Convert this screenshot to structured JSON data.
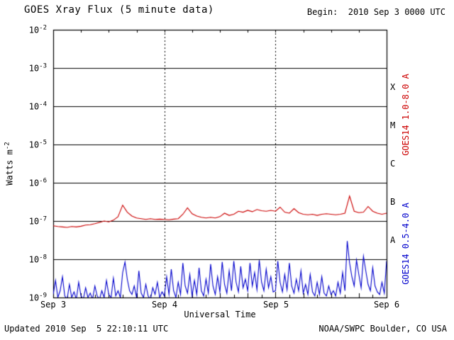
{
  "header": {
    "title": "GOES Xray Flux (5 minute data)",
    "begin": "Begin:  2010 Sep 3 0000 UTC"
  },
  "axes": {
    "ylabel": {
      "base": "Watts m",
      "exp": "-2"
    },
    "xlabel": "Universal Time",
    "y_ticks": [
      {
        "base": "10",
        "exp": "-2"
      },
      {
        "base": "10",
        "exp": "-3"
      },
      {
        "base": "10",
        "exp": "-4"
      },
      {
        "base": "10",
        "exp": "-5"
      },
      {
        "base": "10",
        "exp": "-6"
      },
      {
        "base": "10",
        "exp": "-7"
      },
      {
        "base": "10",
        "exp": "-8"
      },
      {
        "base": "10",
        "exp": "-9"
      }
    ],
    "x_ticks": [
      "Sep 3",
      "Sep 4",
      "Sep 5",
      "Sep 6"
    ],
    "flux_classes": [
      "X",
      "M",
      "C",
      "B",
      "A"
    ]
  },
  "legend": {
    "long_channel": "GOES14 1.0-8.0 A",
    "short_channel": "GOES14 0.5-4.0 A",
    "long_color": "#cc0000",
    "short_color": "#0000cc"
  },
  "footer": {
    "updated": "Updated 2010 Sep  5 22:10:11 UTC",
    "source": "NOAA/SWPC Boulder, CO USA"
  },
  "chart_data": {
    "type": "line",
    "title": "GOES Xray Flux (5 minute data)",
    "xlabel": "Universal Time",
    "ylabel": "Watts m^-2",
    "y_scale": "log",
    "ylim": [
      1e-09,
      0.01
    ],
    "x_start": "2010 Sep 3 0000 UTC",
    "x_end": "2010 Sep 6 0000 UTC",
    "x_span_hours": 72,
    "day_ticks": [
      "Sep 3",
      "Sep 4",
      "Sep 5",
      "Sep 6"
    ],
    "grid": {
      "horizontal_decades": true,
      "vertical_dotted_at_days": true
    },
    "flux_class_bands": {
      "A": [
        1e-08,
        1e-07
      ],
      "B": [
        1e-07,
        1e-06
      ],
      "C": [
        1e-06,
        1e-05
      ],
      "M": [
        1e-05,
        0.0001
      ],
      "X": [
        0.0001,
        0.001
      ]
    },
    "series": [
      {
        "name": "GOES14 1.0-8.0 A",
        "color": "#cc0000",
        "dt_hours": 1,
        "scale": 1e-07,
        "units": "W/m^2",
        "values": [
          0.75,
          0.72,
          0.7,
          0.68,
          0.72,
          0.7,
          0.73,
          0.78,
          0.8,
          0.85,
          0.92,
          1.0,
          0.95,
          1.05,
          1.3,
          2.6,
          1.7,
          1.35,
          1.2,
          1.15,
          1.1,
          1.15,
          1.1,
          1.12,
          1.1,
          1.08,
          1.12,
          1.15,
          1.5,
          2.2,
          1.55,
          1.35,
          1.25,
          1.2,
          1.25,
          1.2,
          1.3,
          1.6,
          1.4,
          1.5,
          1.8,
          1.7,
          1.9,
          1.75,
          2.0,
          1.85,
          1.8,
          1.9,
          1.8,
          2.3,
          1.7,
          1.6,
          2.1,
          1.65,
          1.5,
          1.45,
          1.5,
          1.4,
          1.5,
          1.55,
          1.5,
          1.45,
          1.5,
          1.6,
          4.5,
          1.8,
          1.65,
          1.7,
          2.4,
          1.8,
          1.6,
          1.5,
          1.6
        ]
      },
      {
        "name": "GOES14 0.5-4.0 A",
        "color": "#0000cc",
        "dt_hours": 0.5,
        "scale": 1e-09,
        "units": "W/m^2",
        "values": [
          1.2,
          2.8,
          1.0,
          1.5,
          3.5,
          1.1,
          0.9,
          2.2,
          1.0,
          1.4,
          0.9,
          2.5,
          1.1,
          0.9,
          1.8,
          1.0,
          1.3,
          0.9,
          2.0,
          1.1,
          0.9,
          1.5,
          1.0,
          2.8,
          1.2,
          1.0,
          3.2,
          1.1,
          1.5,
          1.0,
          4.5,
          8.5,
          3.0,
          1.5,
          1.2,
          2.0,
          1.0,
          5.0,
          1.3,
          1.0,
          2.2,
          1.1,
          0.9,
          1.8,
          1.2,
          2.5,
          1.0,
          1.4,
          1.1,
          3.5,
          1.2,
          5.5,
          1.5,
          1.0,
          2.5,
          1.2,
          8.0,
          2.0,
          1.3,
          4.0,
          1.1,
          2.8,
          1.2,
          6.0,
          1.5,
          1.1,
          3.0,
          1.3,
          7.5,
          2.0,
          1.2,
          3.5,
          1.4,
          8.5,
          2.2,
          1.3,
          5.0,
          1.5,
          9.0,
          2.5,
          1.4,
          6.5,
          1.8,
          3.0,
          1.5,
          8.0,
          2.0,
          4.5,
          1.6,
          9.5,
          2.5,
          1.5,
          5.5,
          1.8,
          3.5,
          1.4,
          1.5,
          9.0,
          2.5,
          1.4,
          4.0,
          1.6,
          8.0,
          2.0,
          1.3,
          3.0,
          1.5,
          5.0,
          1.3,
          2.2,
          1.2,
          4.0,
          1.4,
          1.1,
          2.5,
          1.2,
          3.5,
          1.3,
          1.1,
          2.0,
          1.2,
          1.5,
          1.1,
          2.5,
          1.3,
          4.5,
          1.5,
          30.0,
          8.0,
          3.5,
          2.0,
          9.5,
          4.0,
          1.8,
          12.0,
          5.0,
          2.2,
          1.5,
          6.0,
          2.0,
          1.4,
          1.2,
          2.5,
          1.3,
          9.0
        ]
      }
    ]
  }
}
